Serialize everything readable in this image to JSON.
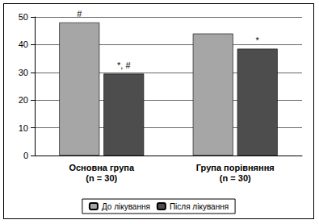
{
  "chart_data": {
    "type": "bar",
    "categories": [
      "Основна група\n(n = 30)",
      "Група порівняння\n(n = 30)"
    ],
    "series": [
      {
        "name": "До лікування",
        "color": "#a6a6a6",
        "values": [
          48,
          44
        ]
      },
      {
        "name": "Після лікування",
        "color": "#4d4d4d",
        "values": [
          29.5,
          38.5
        ]
      }
    ],
    "annotations": [
      {
        "series": "До лікування",
        "category": "Основна група\n(n = 30)",
        "text": "#"
      },
      {
        "series": "Після лікування",
        "category": "Основна група\n(n = 30)",
        "text": "*, #"
      },
      {
        "series": "Після лікування",
        "category": "Група порівняння\n(n = 30)",
        "text": "*"
      }
    ],
    "ylim": [
      0,
      50
    ],
    "yticks": [
      0,
      10,
      20,
      30,
      40,
      50
    ],
    "grid": true,
    "legend": "bottom"
  }
}
